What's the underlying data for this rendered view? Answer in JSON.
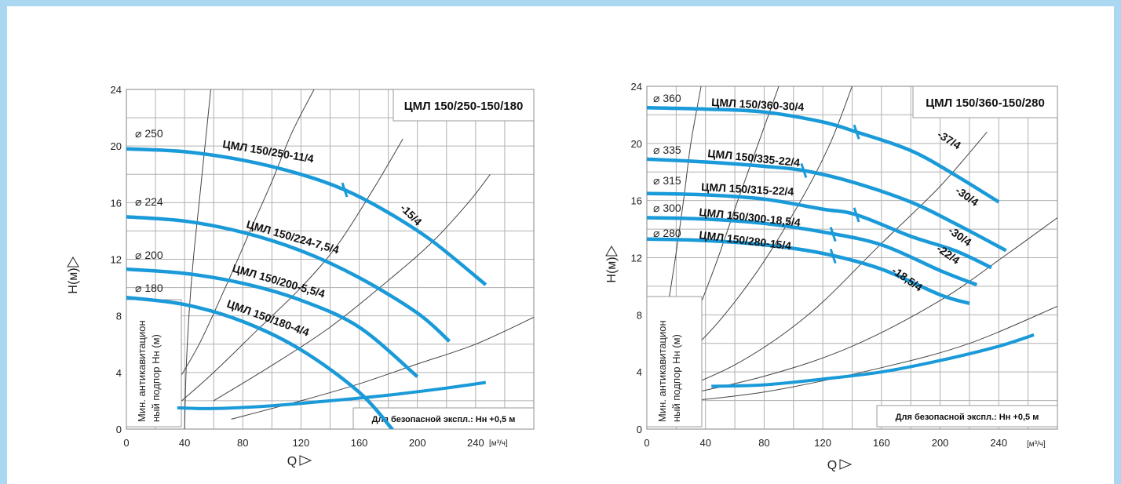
{
  "colors": {
    "frame": "#aad8f2",
    "curve": "#1a9ad8",
    "grid": "#b0b0b0",
    "system": "#444444"
  },
  "chart_data": [
    {
      "type": "line",
      "title": "ЦМЛ 150/250-150/180",
      "ylabel": "H(м)",
      "xlabel": "Q",
      "xunit": "[м³/ч]",
      "xlim": [
        0,
        280
      ],
      "ylim": [
        0,
        24
      ],
      "xticks": [
        "0",
        "40",
        "80",
        "120",
        "160",
        "200",
        "240"
      ],
      "yticks": [
        "0",
        "4",
        "8",
        "12",
        "16",
        "20",
        "24"
      ],
      "npsh_label": [
        "Мин. антикавитацион",
        "ный подпор   Нн (м)"
      ],
      "note": "Для безопасной экспл.: Нн +0,5 м",
      "series": [
        {
          "name": "ЦМЛ 150/250-11/4",
          "diameter": "⌀ 250",
          "x": [
            0,
            40,
            80,
            120,
            150,
            180,
            210,
            247
          ],
          "y": [
            19.8,
            19.6,
            19.0,
            18.0,
            16.9,
            15.3,
            13.3,
            10.2
          ],
          "marker_x": 150,
          "extra_label": "-15/4"
        },
        {
          "name": "ЦМЛ 150/224-7,5/4",
          "diameter": "⌀ 224",
          "x": [
            0,
            40,
            80,
            120,
            160,
            200,
            222
          ],
          "y": [
            15.0,
            14.7,
            13.9,
            12.6,
            10.7,
            8.2,
            6.2
          ]
        },
        {
          "name": "ЦМЛ 150/200-5,5/4",
          "diameter": "⌀ 200",
          "x": [
            0,
            40,
            80,
            120,
            160,
            200
          ],
          "y": [
            11.3,
            11.0,
            10.3,
            9.1,
            7.2,
            3.7
          ]
        },
        {
          "name": "ЦМЛ 150/180-4/4",
          "diameter": "⌀ 180",
          "x": [
            0,
            40,
            80,
            120,
            160,
            185
          ],
          "y": [
            9.3,
            8.8,
            7.6,
            5.6,
            2.6,
            -0.3
          ]
        }
      ],
      "npsh_curve": {
        "x": [
          35,
          60,
          100,
          140,
          180,
          220,
          247
        ],
        "y": [
          1.5,
          1.45,
          1.65,
          2.0,
          2.4,
          2.9,
          3.3
        ]
      },
      "system_curves": [
        {
          "x": [
            40,
            41,
            43,
            46,
            50,
            54,
            58
          ],
          "y": [
            0,
            4,
            8,
            12,
            16,
            20,
            24
          ]
        },
        {
          "x": [
            33,
            50,
            68,
            85,
            100,
            114,
            129
          ],
          "y": [
            3,
            6,
            10,
            14,
            17.5,
            21,
            24
          ]
        },
        {
          "x": [
            38,
            60,
            90,
            120,
            145,
            170,
            190
          ],
          "y": [
            2,
            4,
            7,
            10,
            13,
            17,
            20.5
          ]
        },
        {
          "x": [
            60,
            100,
            140,
            180,
            210,
            235,
            250
          ],
          "y": [
            2,
            4.5,
            7.2,
            10.5,
            13.2,
            16,
            18
          ]
        },
        {
          "x": [
            72,
            120,
            160,
            200,
            240,
            280
          ],
          "y": [
            0.7,
            2.0,
            3.2,
            4.6,
            6.0,
            7.9
          ]
        }
      ]
    },
    {
      "type": "line",
      "title": "ЦМЛ 150/360-150/280",
      "ylabel": "H(м)",
      "xlabel": "Q",
      "xunit": "[м³/ч]",
      "xlim": [
        0,
        280
      ],
      "ylim": [
        0,
        24
      ],
      "xticks": [
        "0",
        "40",
        "80",
        "120",
        "160",
        "200",
        "240"
      ],
      "yticks": [
        "0",
        "4",
        "8",
        "12",
        "16",
        "20",
        "24"
      ],
      "npsh_label": [
        "Мин. антикавитацион",
        "ный подпор   Нн (м)"
      ],
      "note": "Для безопасной экспл.: Нн +0,5 м",
      "series": [
        {
          "name": "ЦМЛ 150/360-30/4",
          "diameter": "⌀ 360",
          "x": [
            0,
            40,
            80,
            120,
            143,
            180,
            210,
            240
          ],
          "y": [
            22.5,
            22.4,
            22.2,
            21.5,
            20.8,
            19.5,
            17.8,
            15.9
          ],
          "marker_x": 143,
          "extra_label": "-37/4"
        },
        {
          "name": "ЦМЛ 150/335-22/4",
          "diameter": "⌀ 335",
          "x": [
            0,
            40,
            80,
            107,
            140,
            180,
            210,
            245
          ],
          "y": [
            18.9,
            18.7,
            18.4,
            18.1,
            17.3,
            15.9,
            14.4,
            12.5
          ],
          "marker_x": 107,
          "extra_label": "-30/4"
        },
        {
          "name": "ЦМЛ 150/315-22/4",
          "diameter": "⌀ 315",
          "x": [
            0,
            40,
            80,
            120,
            143,
            180,
            210,
            235
          ],
          "y": [
            16.5,
            16.4,
            16.1,
            15.4,
            15.0,
            13.5,
            12.5,
            11.3
          ],
          "marker_x": 143,
          "extra_label": "-30/4"
        },
        {
          "name": "ЦМЛ 150/300-18,5/4",
          "diameter": "⌀ 300",
          "x": [
            0,
            40,
            80,
            120,
            160,
            200,
            225
          ],
          "y": [
            14.8,
            14.7,
            14.4,
            13.8,
            12.9,
            11.1,
            10.1
          ],
          "marker_x": 127,
          "extra_label": "-22/4"
        },
        {
          "name": "ЦМЛ 150/280-15/4",
          "diameter": "⌀ 280",
          "x": [
            0,
            40,
            80,
            120,
            160,
            200,
            220
          ],
          "y": [
            13.3,
            13.2,
            12.9,
            12.3,
            11.2,
            9.4,
            8.8
          ],
          "marker_x": 127,
          "extra_label": "-18,5/4"
        }
      ],
      "npsh_curve": {
        "x": [
          44,
          80,
          120,
          160,
          200,
          240,
          264
        ],
        "y": [
          3.0,
          3.1,
          3.5,
          4.0,
          4.8,
          5.8,
          6.6
        ]
      },
      "system_curves": [
        {
          "x": [
            3,
            10,
            18,
            25,
            30,
            37
          ],
          "y": [
            2,
            6,
            11,
            16,
            20,
            24
          ]
        },
        {
          "x": [
            3,
            25,
            45,
            62,
            76,
            90
          ],
          "y": [
            2.5,
            6,
            11,
            16,
            20,
            24
          ]
        },
        {
          "x": [
            3,
            40,
            75,
            105,
            125,
            140
          ],
          "y": [
            3.3,
            6.5,
            11,
            16,
            20,
            24
          ]
        },
        {
          "x": [
            3,
            60,
            110,
            160,
            200,
            232
          ],
          "y": [
            2.0,
            4.5,
            8,
            13,
            17,
            20.8
          ]
        },
        {
          "x": [
            3,
            80,
            140,
            200,
            245,
            280
          ],
          "y": [
            1.9,
            3.7,
            5.8,
            9.0,
            12.2,
            14.8
          ]
        },
        {
          "x": [
            3,
            80,
            160,
            220,
            280
          ],
          "y": [
            1.7,
            2.6,
            4.3,
            6.0,
            8.6
          ]
        }
      ]
    }
  ]
}
